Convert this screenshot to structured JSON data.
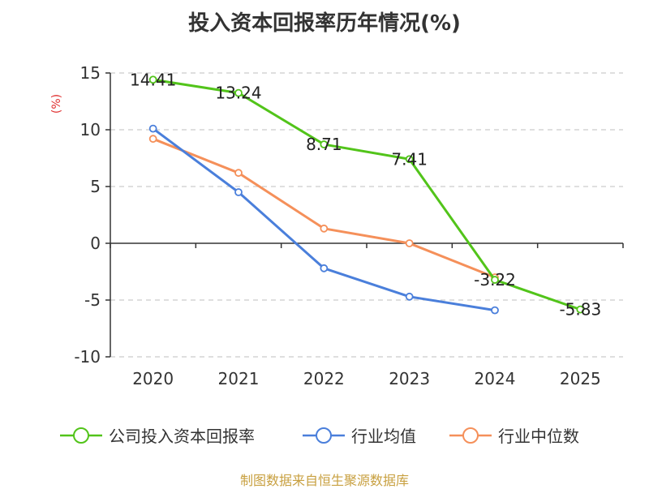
{
  "chart_data": {
    "type": "line",
    "title": "投入资本回报率历年情况(%)",
    "ylabel": "(%)",
    "categories": [
      "2020",
      "2021",
      "2022",
      "2023",
      "2024",
      "2025"
    ],
    "ylim": [
      -10,
      15
    ],
    "yticks": [
      -10,
      -5,
      0,
      5,
      10,
      15
    ],
    "grid": true,
    "legend_position": "bottom",
    "series": [
      {
        "name": "公司投入资本回报率",
        "color": "#52c41a",
        "values": [
          14.41,
          13.24,
          8.71,
          7.41,
          -3.22,
          -5.83
        ],
        "labels": [
          "14.41",
          "13.24",
          "8.71",
          "7.41",
          "-3.22",
          "-5.83"
        ]
      },
      {
        "name": "行业均值",
        "color": "#4a7fdb",
        "values": [
          10.1,
          4.5,
          -2.2,
          -4.7,
          -5.9,
          null
        ]
      },
      {
        "name": "行业中位数",
        "color": "#f5905a",
        "values": [
          9.2,
          6.2,
          1.3,
          0.0,
          -3.0,
          null
        ]
      }
    ]
  },
  "source": "制图数据来自恒生聚源数据库"
}
